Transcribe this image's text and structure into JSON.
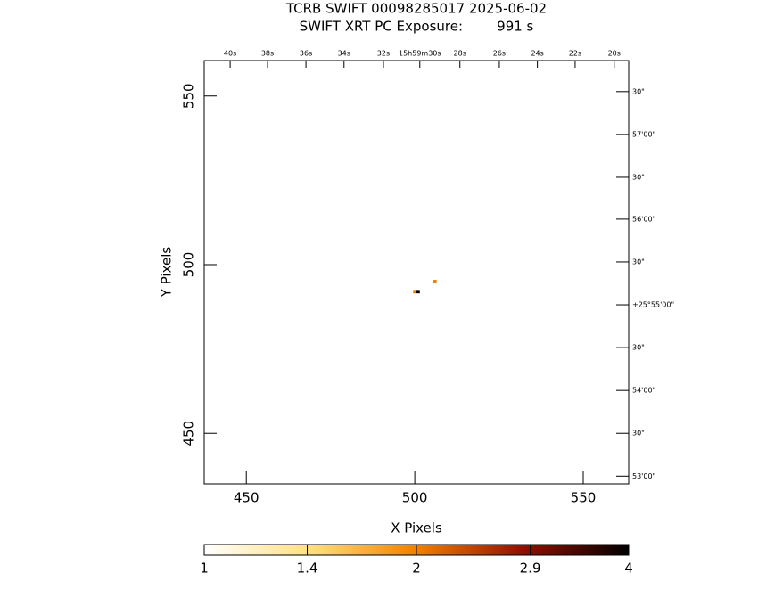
{
  "chart_data": {
    "type": "image",
    "title": "TCRB SWIFT 00098285017 2025-06-02",
    "subtitle": "SWIFT XRT PC Exposure:        991 s",
    "x_label": "X Pixels",
    "y_label": "Y Pixels",
    "xlim": [
      437.5,
      563.5
    ],
    "ylim": [
      435,
      560.5
    ],
    "xticks": [
      450,
      500,
      550
    ],
    "yticks": [
      450,
      500,
      550
    ],
    "x2ticks": [
      {
        "value": 445.2,
        "label": "40s"
      },
      {
        "value": 456.3,
        "label": "38s"
      },
      {
        "value": 467.7,
        "label": "36s"
      },
      {
        "value": 479.0,
        "label": "34s"
      },
      {
        "value": 490.7,
        "label": "32s"
      },
      {
        "value": 501.5,
        "label": "15h59m30s"
      },
      {
        "value": 513.4,
        "label": "28s"
      },
      {
        "value": 525.1,
        "label": "26s"
      },
      {
        "value": 536.4,
        "label": "24s"
      },
      {
        "value": 547.6,
        "label": "22s"
      },
      {
        "value": 559.2,
        "label": "20s"
      }
    ],
    "y2ticks": [
      {
        "value": 551.3,
        "label": "30\""
      },
      {
        "value": 538.6,
        "label": "57'00\""
      },
      {
        "value": 525.9,
        "label": "30\""
      },
      {
        "value": 513.5,
        "label": "56'00\""
      },
      {
        "value": 500.8,
        "label": "30\""
      },
      {
        "value": 488.1,
        "label": "+25°55'00\""
      },
      {
        "value": 475.4,
        "label": "30\""
      },
      {
        "value": 462.7,
        "label": "54'00\""
      },
      {
        "value": 450.0,
        "label": "30\""
      },
      {
        "value": 437.3,
        "label": "53'00\""
      }
    ],
    "pixels": {
      "x": [
        500,
        501,
        506
      ],
      "y": [
        492,
        492,
        495
      ],
      "values": [
        2,
        4,
        2
      ]
    },
    "colorbar": {
      "scale": "log",
      "lim": [
        1,
        4
      ],
      "ticks": [
        1,
        1.4,
        2,
        2.9,
        4
      ]
    }
  }
}
